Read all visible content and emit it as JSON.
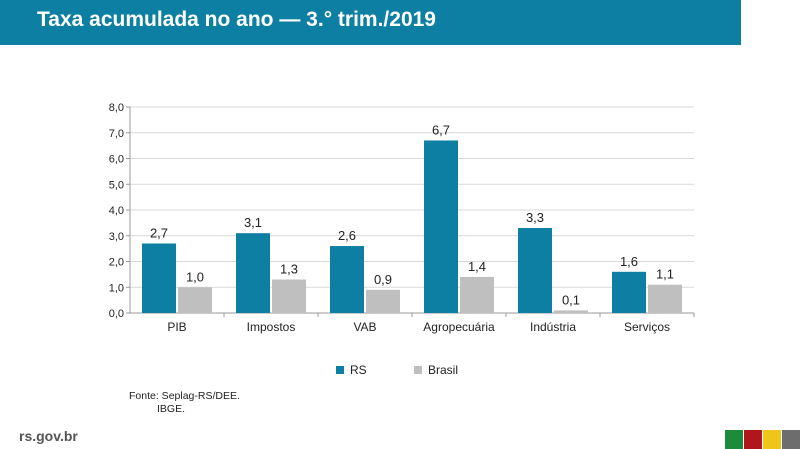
{
  "header": {
    "title": "Taxa acumulada no ano — 3.° trim./2019"
  },
  "chart_data": {
    "type": "bar",
    "title": "",
    "categories": [
      "PIB",
      "Impostos",
      "VAB",
      "Agropecuária",
      "Indústria",
      "Serviços"
    ],
    "series": [
      {
        "name": "RS",
        "values": [
          2.7,
          3.1,
          2.6,
          6.7,
          3.3,
          1.6
        ],
        "labels": [
          "2,7",
          "3,1",
          "2,6",
          "6,7",
          "3,3",
          "1,6"
        ],
        "color": "#0d7fa3"
      },
      {
        "name": "Brasil",
        "values": [
          1.0,
          1.3,
          0.9,
          1.4,
          0.1,
          1.1
        ],
        "labels": [
          "1,0",
          "1,3",
          "0,9",
          "1,4",
          "0,1",
          "1,1"
        ],
        "color": "#bfbfbf"
      }
    ],
    "ylim": [
      0,
      8
    ],
    "yticks": [
      "0,0",
      "1,0",
      "2,0",
      "3,0",
      "4,0",
      "5,0",
      "6,0",
      "7,0",
      "8,0"
    ],
    "grid": true,
    "legend": "bottom-center",
    "xlabel": "",
    "ylabel": ""
  },
  "source": {
    "line1": "Fonte: Seplag-RS/DEE.",
    "line2": "IBGE."
  },
  "footer": {
    "url": "rs.gov.br",
    "flag_colors": [
      "#1e8a3c",
      "#b0161c",
      "#f0c419",
      "#6d6d6d"
    ]
  }
}
